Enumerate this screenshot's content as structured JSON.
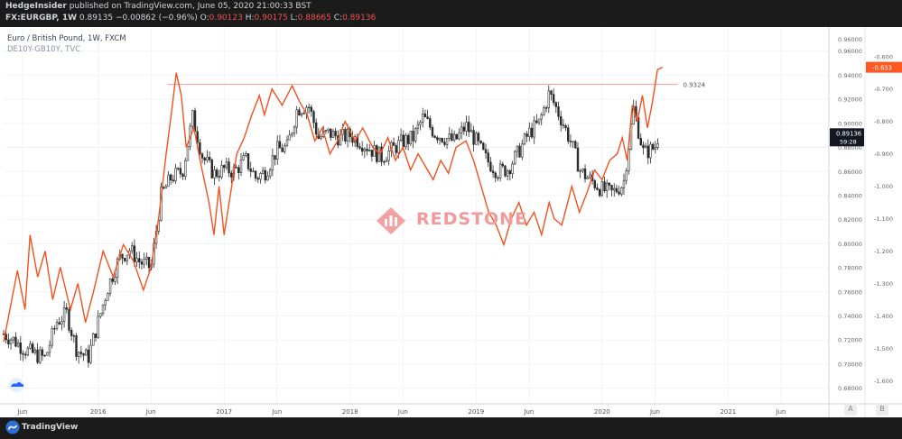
{
  "header": {
    "publisher": "HedgeInsider",
    "published_text": "published on TradingView.com, June 05, 2020 21:00:33 BST",
    "symbol": "FX:EURGBP, 1W",
    "last": "0.89135",
    "change": "−0.00862 (−0.96%)",
    "open_label": "O:",
    "open": "0.90123",
    "high_label": "H:",
    "high": "0.90175",
    "low_label": "L:",
    "low": "0.88665",
    "close_label": "C:",
    "close": "0.89136"
  },
  "legend": {
    "line1": "Euro / British Pound, 1W, FXCM",
    "line2": "DE10Y-GB10Y, TVC"
  },
  "watermark": {
    "text": "REDSTONE",
    "icon": "redstone-logo-icon"
  },
  "footer": {
    "brand": "TradingView",
    "icon": "tradingview-logo-icon"
  },
  "axis_buttons": {
    "auto": "A",
    "log": "B"
  },
  "badges": {
    "right_spread": "-0.633",
    "price": "0.89136",
    "countdown": "59:28",
    "level": "0.9324"
  },
  "colors": {
    "background": "#ffffff",
    "spread_line": "#f4511e",
    "candles": "#2a2a2a",
    "level_line": "#ef9a9a",
    "badge_red": "#ff5722",
    "badge_dark": "#131722",
    "frame": "#1f1f1f"
  },
  "chart_data": {
    "type": "line",
    "x_ticks": [
      "Jun",
      "2016",
      "Jun",
      "2017",
      "Jun",
      "2018",
      "Jun",
      "2019",
      "Jun",
      "2020",
      "Jun",
      "2021",
      "Jun"
    ],
    "x_range": [
      2015.25,
      2021.8
    ],
    "right_axis_price": {
      "labels": [
        "0.96000",
        "0.96000",
        "0.94000",
        "0.92000",
        "0.90000",
        "0.88000",
        "0.86000",
        "0.84000",
        "0.82000",
        "0.80000",
        "0.78000",
        "0.76000",
        "0.74000",
        "0.72000",
        "0.70000",
        "0.68000"
      ],
      "range": [
        0.67,
        0.977
      ]
    },
    "right_axis_spread": {
      "labels": [
        "-0.600",
        "-0.700",
        "-0.800",
        "-0.900",
        "-1.000",
        "-1.100",
        "-1.200",
        "-1.300",
        "-1.400",
        "-1.500",
        "-1.600"
      ],
      "range": [
        -1.66,
        -0.52
      ]
    },
    "horizontal_level": {
      "value": 0.9324,
      "label": "0.9324"
    },
    "series": [
      {
        "name": "Euro / British Pound, 1W, FXCM",
        "axis": "price",
        "style": "candles",
        "points": [
          [
            2015.25,
            0.725
          ],
          [
            2015.33,
            0.72
          ],
          [
            2015.42,
            0.712
          ],
          [
            2015.5,
            0.708
          ],
          [
            2015.58,
            0.705
          ],
          [
            2015.67,
            0.735
          ],
          [
            2015.75,
            0.742
          ],
          [
            2015.83,
            0.712
          ],
          [
            2015.92,
            0.705
          ],
          [
            2016.0,
            0.735
          ],
          [
            2016.08,
            0.765
          ],
          [
            2016.17,
            0.788
          ],
          [
            2016.25,
            0.795
          ],
          [
            2016.33,
            0.785
          ],
          [
            2016.42,
            0.78
          ],
          [
            2016.5,
            0.84
          ],
          [
            2016.58,
            0.855
          ],
          [
            2016.67,
            0.86
          ],
          [
            2016.75,
            0.905
          ],
          [
            2016.83,
            0.872
          ],
          [
            2016.92,
            0.858
          ],
          [
            2017.0,
            0.862
          ],
          [
            2017.08,
            0.86
          ],
          [
            2017.17,
            0.87
          ],
          [
            2017.25,
            0.855
          ],
          [
            2017.33,
            0.86
          ],
          [
            2017.42,
            0.878
          ],
          [
            2017.5,
            0.88
          ],
          [
            2017.58,
            0.912
          ],
          [
            2017.67,
            0.915
          ],
          [
            2017.75,
            0.888
          ],
          [
            2017.83,
            0.892
          ],
          [
            2017.92,
            0.888
          ],
          [
            2018.0,
            0.89
          ],
          [
            2018.08,
            0.885
          ],
          [
            2018.17,
            0.878
          ],
          [
            2018.25,
            0.872
          ],
          [
            2018.33,
            0.878
          ],
          [
            2018.42,
            0.885
          ],
          [
            2018.5,
            0.888
          ],
          [
            2018.58,
            0.905
          ],
          [
            2018.67,
            0.892
          ],
          [
            2018.75,
            0.888
          ],
          [
            2018.83,
            0.885
          ],
          [
            2018.92,
            0.898
          ],
          [
            2019.0,
            0.885
          ],
          [
            2019.08,
            0.87
          ],
          [
            2019.17,
            0.86
          ],
          [
            2019.25,
            0.862
          ],
          [
            2019.33,
            0.875
          ],
          [
            2019.42,
            0.892
          ],
          [
            2019.5,
            0.9
          ],
          [
            2019.58,
            0.925
          ],
          [
            2019.67,
            0.905
          ],
          [
            2019.75,
            0.885
          ],
          [
            2019.83,
            0.86
          ],
          [
            2019.92,
            0.852
          ],
          [
            2020.0,
            0.845
          ],
          [
            2020.08,
            0.842
          ],
          [
            2020.17,
            0.85
          ],
          [
            2020.25,
            0.912
          ],
          [
            2020.33,
            0.875
          ],
          [
            2020.42,
            0.88
          ],
          [
            2020.45,
            0.891
          ]
        ]
      },
      {
        "name": "DE10Y-GB10Y, TVC",
        "axis": "spread",
        "style": "line",
        "points": [
          [
            2015.25,
            -1.48
          ],
          [
            2015.3,
            -1.38
          ],
          [
            2015.36,
            -1.26
          ],
          [
            2015.42,
            -1.38
          ],
          [
            2015.46,
            -1.15
          ],
          [
            2015.52,
            -1.28
          ],
          [
            2015.58,
            -1.2
          ],
          [
            2015.64,
            -1.35
          ],
          [
            2015.7,
            -1.25
          ],
          [
            2015.78,
            -1.38
          ],
          [
            2015.84,
            -1.3
          ],
          [
            2015.9,
            -1.42
          ],
          [
            2015.96,
            -1.33
          ],
          [
            2016.04,
            -1.2
          ],
          [
            2016.12,
            -1.28
          ],
          [
            2016.2,
            -1.18
          ],
          [
            2016.28,
            -1.23
          ],
          [
            2016.36,
            -1.32
          ],
          [
            2016.42,
            -1.25
          ],
          [
            2016.48,
            -1.1
          ],
          [
            2016.54,
            -0.9
          ],
          [
            2016.58,
            -0.78
          ],
          [
            2016.62,
            -0.65
          ],
          [
            2016.66,
            -0.72
          ],
          [
            2016.7,
            -0.88
          ],
          [
            2016.76,
            -0.82
          ],
          [
            2016.82,
            -0.94
          ],
          [
            2016.88,
            -1.05
          ],
          [
            2016.92,
            -1.15
          ],
          [
            2016.96,
            -1.0
          ],
          [
            2017.0,
            -1.15
          ],
          [
            2017.04,
            -1.05
          ],
          [
            2017.1,
            -0.9
          ],
          [
            2017.16,
            -0.85
          ],
          [
            2017.22,
            -0.78
          ],
          [
            2017.28,
            -0.72
          ],
          [
            2017.32,
            -0.78
          ],
          [
            2017.38,
            -0.7
          ],
          [
            2017.46,
            -0.75
          ],
          [
            2017.54,
            -0.69
          ],
          [
            2017.6,
            -0.74
          ],
          [
            2017.66,
            -0.78
          ],
          [
            2017.72,
            -0.86
          ],
          [
            2017.78,
            -0.82
          ],
          [
            2017.84,
            -0.9
          ],
          [
            2017.9,
            -0.86
          ],
          [
            2017.96,
            -0.8
          ],
          [
            2018.04,
            -0.86
          ],
          [
            2018.1,
            -0.82
          ],
          [
            2018.18,
            -0.88
          ],
          [
            2018.24,
            -0.9
          ],
          [
            2018.3,
            -0.85
          ],
          [
            2018.36,
            -0.92
          ],
          [
            2018.42,
            -0.88
          ],
          [
            2018.48,
            -0.95
          ],
          [
            2018.54,
            -0.9
          ],
          [
            2018.6,
            -0.94
          ],
          [
            2018.66,
            -0.98
          ],
          [
            2018.72,
            -0.92
          ],
          [
            2018.78,
            -0.96
          ],
          [
            2018.84,
            -0.88
          ],
          [
            2018.92,
            -0.86
          ],
          [
            2018.98,
            -0.92
          ],
          [
            2019.04,
            -1.0
          ],
          [
            2019.1,
            -1.08
          ],
          [
            2019.16,
            -1.12
          ],
          [
            2019.22,
            -1.18
          ],
          [
            2019.28,
            -1.1
          ],
          [
            2019.34,
            -1.05
          ],
          [
            2019.4,
            -1.12
          ],
          [
            2019.46,
            -1.08
          ],
          [
            2019.52,
            -1.15
          ],
          [
            2019.58,
            -1.05
          ],
          [
            2019.62,
            -1.1
          ],
          [
            2019.68,
            -1.12
          ],
          [
            2019.72,
            -1.06
          ],
          [
            2019.76,
            -1.0
          ],
          [
            2019.82,
            -1.08
          ],
          [
            2019.88,
            -1.02
          ],
          [
            2019.94,
            -0.95
          ],
          [
            2020.0,
            -0.98
          ],
          [
            2020.06,
            -0.92
          ],
          [
            2020.12,
            -0.9
          ],
          [
            2020.16,
            -0.85
          ],
          [
            2020.2,
            -0.92
          ],
          [
            2020.24,
            -0.75
          ],
          [
            2020.28,
            -0.8
          ],
          [
            2020.32,
            -0.72
          ],
          [
            2020.36,
            -0.82
          ],
          [
            2020.4,
            -0.74
          ],
          [
            2020.44,
            -0.64
          ],
          [
            2020.48,
            -0.633
          ]
        ]
      }
    ],
    "grid": true,
    "legend_position": "top-left"
  }
}
